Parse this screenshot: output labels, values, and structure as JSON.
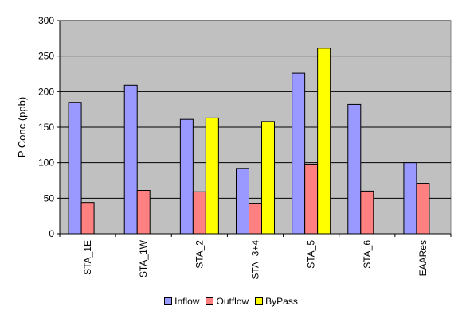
{
  "chart_data": {
    "type": "bar",
    "title": "",
    "xlabel": "",
    "ylabel": "P Conc  (ppb)",
    "ylim": [
      0,
      300
    ],
    "yticks": [
      0,
      50,
      100,
      150,
      200,
      250,
      300
    ],
    "categories": [
      "STA_1E",
      "STA_1W",
      "STA_2",
      "STA_3+4",
      "STA_5",
      "STA_6",
      "EAARes"
    ],
    "series": [
      {
        "name": "Inflow",
        "color": "#9999ff",
        "values": [
          185,
          209,
          161,
          92,
          226,
          182,
          100
        ]
      },
      {
        "name": "Outflow",
        "color": "#ff8080",
        "values": [
          44,
          61,
          59,
          43,
          98,
          60,
          71
        ]
      },
      {
        "name": "ByPass",
        "color": "#ffff00",
        "values": [
          null,
          null,
          163,
          158,
          261,
          null,
          null
        ]
      }
    ],
    "grid": true,
    "plot_background": "#c0c0c0",
    "legend_position": "bottom"
  }
}
